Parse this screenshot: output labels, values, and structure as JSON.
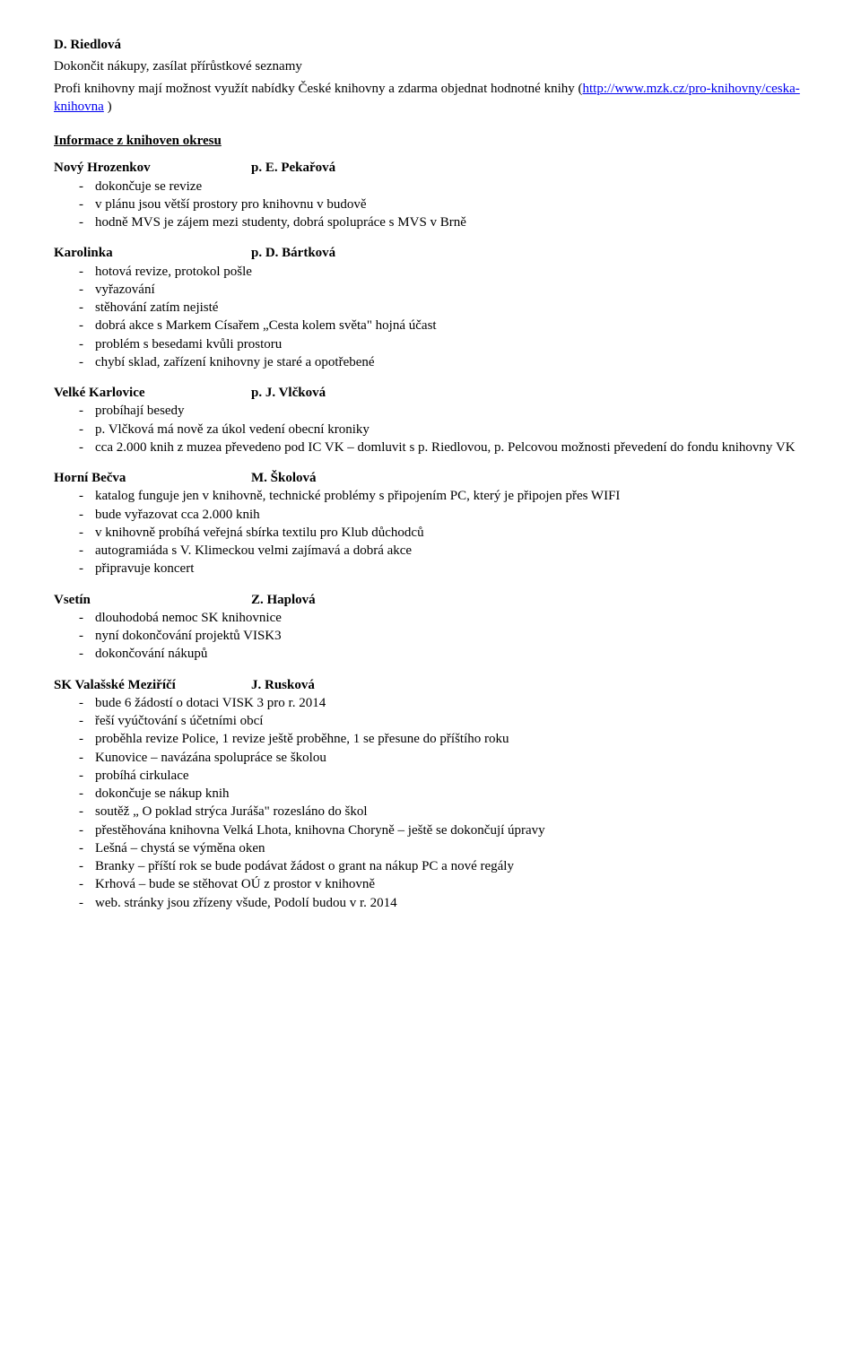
{
  "top": {
    "author": "D. Riedlová",
    "line1": "Dokončit nákupy, zasílat přírůstkové seznamy",
    "line2_pre": "Profi knihovny mají možnost využít nabídky České knihovny a zdarma objednat hodnotné knihy (",
    "link": "http://www.mzk.cz/pro-knihovny/ceska-knihovna",
    "line2_post": " )"
  },
  "info_heading": "Informace z knihoven okresu",
  "sections": [
    {
      "left": "Nový Hrozenkov",
      "right": "p. E. Pekařová",
      "items": [
        "dokončuje se revize",
        "v plánu jsou větší prostory pro knihovnu v budově",
        "hodně MVS je zájem mezi studenty, dobrá spolupráce s MVS v Brně"
      ]
    },
    {
      "left": "Karolinka",
      "right": "p. D. Bártková",
      "items": [
        "hotová revize, protokol pošle",
        "vyřazování",
        "stěhování zatím nejisté",
        "dobrá akce s Markem Císařem „Cesta kolem světa\" hojná účast",
        "problém s besedami kvůli prostoru",
        "chybí sklad, zařízení knihovny je staré a opotřebené"
      ]
    },
    {
      "left": "Velké Karlovice",
      "right": "p. J. Vlčková",
      "items": [
        "probíhají besedy",
        "p. Vlčková má nově za úkol vedení obecní kroniky",
        "cca 2.000 knih z muzea převedeno pod IC VK – domluvit s p. Riedlovou, p. Pelcovou možnosti převedení do fondu knihovny VK"
      ]
    },
    {
      "left": "Horní Bečva",
      "right": "M. Školová",
      "items": [
        "katalog funguje jen v knihovně, technické problémy s připojením PC, který je připojen přes WIFI",
        "bude vyřazovat cca 2.000 knih",
        "v knihovně probíhá veřejná sbírka textilu pro Klub důchodců",
        "autogramiáda s V. Klimeckou velmi zajímavá a dobrá akce",
        "připravuje koncert"
      ]
    },
    {
      "left": "Vsetín",
      "right": "Z. Haplová",
      "items": [
        "dlouhodobá nemoc SK knihovnice",
        "nyní dokončování projektů VISK3",
        "dokončování nákupů"
      ]
    },
    {
      "left": "SK Valašské Meziříčí",
      "right": "J. Rusková",
      "items": [
        "bude 6 žádostí o dotaci VISK 3 pro r. 2014",
        "řeší vyúčtování s účetními obcí",
        "proběhla revize Police, 1 revize ještě proběhne, 1 se přesune do příštího roku",
        "Kunovice – navázána spolupráce se školou",
        "probíhá cirkulace",
        "dokončuje se nákup knih",
        "soutěž „ O poklad strýca Juráša\" rozesláno do škol",
        "přestěhována knihovna Velká Lhota, knihovna Choryně – ještě se dokončují úpravy",
        "Lešná – chystá se výměna oken",
        "Branky – příští rok se bude podávat žádost o grant na nákup PC a nové regály",
        "Krhová – bude se stěhovat OÚ z prostor v knihovně",
        "web. stránky  jsou zřízeny všude, Podolí budou v r. 2014"
      ]
    }
  ]
}
